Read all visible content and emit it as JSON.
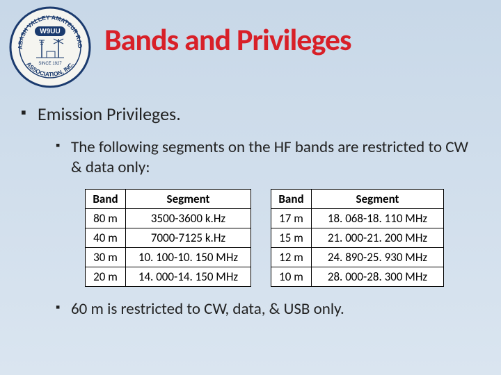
{
  "logo": {
    "outer_text": "WABASH VALLEY AMATEUR RADIO ASSOCIATION, INC.",
    "callsign": "W9UU",
    "since": "SINCE 1927"
  },
  "title": "Bands and Privileges",
  "heading": "Emission Privileges.",
  "sub_text": "The following segments on the HF bands are restricted to CW & data only:",
  "table_headers": {
    "band": "Band",
    "segment": "Segment"
  },
  "table_left": {
    "columns": [
      "Band",
      "Segment"
    ],
    "rows": [
      [
        "80 m",
        "3500-3600 k.Hz"
      ],
      [
        "40 m",
        "7000-7125 k.Hz"
      ],
      [
        "30 m",
        "10. 100-10. 150 MHz"
      ],
      [
        "20 m",
        "14. 000-14. 150 MHz"
      ]
    ],
    "col_widths": [
      "58px",
      "180px"
    ]
  },
  "table_right": {
    "columns": [
      "Band",
      "Segment"
    ],
    "rows": [
      [
        "17 m",
        "18. 068-18. 110 MHz"
      ],
      [
        "15 m",
        "21. 000-21. 200 MHz"
      ],
      [
        "12 m",
        "24. 890-25. 930 MHz"
      ],
      [
        "10 m",
        "28. 000-28. 300 MHz"
      ]
    ],
    "col_widths": [
      "58px",
      "190px"
    ]
  },
  "footnote": "60 m is restricted to CW, data, & USB only.",
  "styling": {
    "title_color": "#d82028",
    "title_fontsize": 44,
    "body_fontsize": 23,
    "heading_fontsize": 26,
    "table_fontsize": 17,
    "background_gradient": [
      "#c8d8e8",
      "#dae5f0"
    ],
    "text_color": "#222",
    "table_border": "#000",
    "table_bg": "#fff",
    "logo_border": "#1a3a6e"
  }
}
